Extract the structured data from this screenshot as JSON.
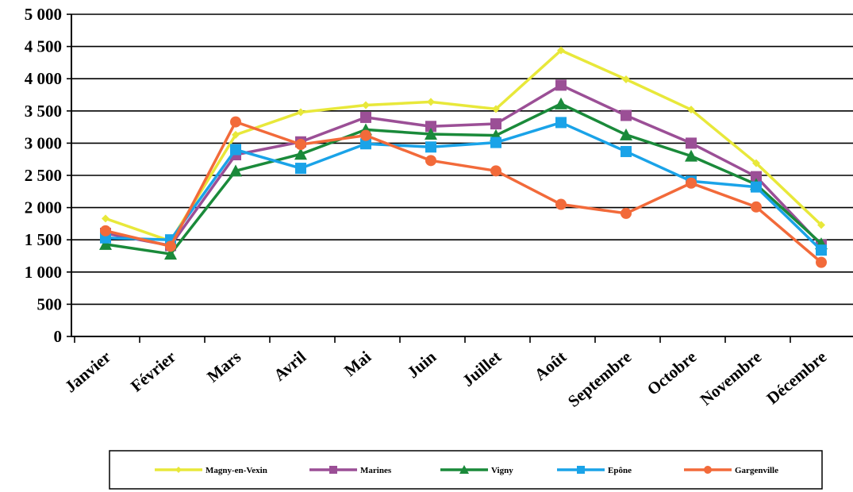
{
  "chart_data": {
    "type": "line",
    "categories": [
      "Janvier",
      "Février",
      "Mars",
      "Avril",
      "Mai",
      "Juin",
      "Juillet",
      "Août",
      "Septembre",
      "Octobre",
      "Novembre",
      "Décembre"
    ],
    "y_tick_labels": [
      "0",
      "500",
      "1 000",
      "1 500",
      "2 000",
      "2 500",
      "3 000",
      "3 500",
      "4 000",
      "4 500",
      "5 000"
    ],
    "ylim": [
      0,
      5000
    ],
    "grid": "horizontal",
    "legend_position": "bottom",
    "series": [
      {
        "name": "Magny-en-Vexin",
        "color": "#e8e83a",
        "marker": "diamond",
        "values": [
          1830,
          1480,
          3130,
          3480,
          3590,
          3640,
          3530,
          4440,
          3990,
          3520,
          2690,
          1730
        ]
      },
      {
        "name": "Marines",
        "color": "#9b4f96",
        "marker": "square",
        "values": [
          1600,
          1410,
          2820,
          3020,
          3400,
          3260,
          3300,
          3900,
          3430,
          3000,
          2480,
          1420
        ]
      },
      {
        "name": "Vigny",
        "color": "#1a8a3a",
        "marker": "triangle",
        "values": [
          1430,
          1280,
          2570,
          2830,
          3210,
          3140,
          3120,
          3610,
          3130,
          2800,
          2360,
          1440
        ]
      },
      {
        "name": "Epône",
        "color": "#1aa3e8",
        "marker": "square",
        "values": [
          1530,
          1500,
          2900,
          2610,
          2990,
          2940,
          3010,
          3320,
          2870,
          2410,
          2320,
          1340
        ]
      },
      {
        "name": "Gargenville",
        "color": "#f26a3a",
        "marker": "circle",
        "values": [
          1640,
          1400,
          3330,
          2980,
          3120,
          2730,
          2570,
          2050,
          1910,
          2380,
          2010,
          1150
        ]
      }
    ]
  }
}
